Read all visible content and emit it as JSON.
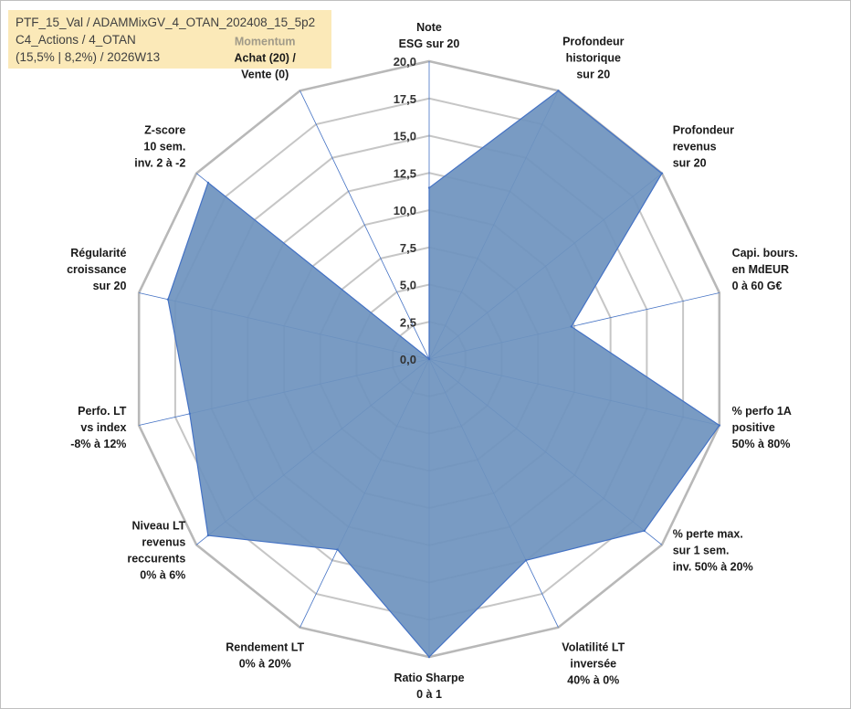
{
  "info": {
    "line1": "PTF_15_Val / ADAMMixGV_4_OTAN_202408_15_5p2",
    "line2": "C4_Actions / 4_OTAN",
    "line3": "(15,5% | 8,2%) / 2026W13"
  },
  "colors": {
    "fill": "#6f93be",
    "stroke": "#4472c4",
    "grid": "#c6c6c6",
    "spoke": "#4472c4",
    "background": "#fbe9b8"
  },
  "chart_data": {
    "type": "radar",
    "ylim": [
      0,
      20
    ],
    "ticks": [
      "0,0",
      "2,5",
      "5,0",
      "7,5",
      "10,0",
      "12,5",
      "15,0",
      "17,5",
      "20,0"
    ],
    "categories": [
      {
        "lines": [
          "Note",
          "ESG sur 20"
        ],
        "value": 11.5
      },
      {
        "lines": [
          "Profondeur",
          "historique",
          "sur 20"
        ],
        "value": 20
      },
      {
        "lines": [
          "Profondeur",
          "revenus",
          "sur 20"
        ],
        "value": 20
      },
      {
        "lines": [
          "Capi. bours.",
          "en MdEUR",
          "0 à 60 G€"
        ],
        "value": 9.8
      },
      {
        "lines": [
          "% perfo 1A",
          "positive",
          "50% à 80%"
        ],
        "value": 20
      },
      {
        "lines": [
          "% perte max.",
          "sur 1 sem.",
          "inv. 50% à 20%"
        ],
        "value": 18.5
      },
      {
        "lines": [
          "Volatilité LT",
          "inversée",
          "40% à 0%"
        ],
        "value": 15
      },
      {
        "lines": [
          "Ratio Sharpe",
          "0 à 1"
        ],
        "value": 20
      },
      {
        "lines": [
          "Rendement LT",
          "0% à 20%"
        ],
        "value": 14.2
      },
      {
        "lines": [
          "Niveau LT",
          "revenus",
          "reccurents",
          "0% à 6%"
        ],
        "value": 19
      },
      {
        "lines": [
          "Perfo. LT",
          "vs index",
          "-8% à 12%"
        ],
        "value": 16.5
      },
      {
        "lines": [
          "Régularité",
          "croissance",
          "sur 20"
        ],
        "value": 18
      },
      {
        "lines": [
          "Z-score",
          "10 sem.",
          "inv. 2 à -2"
        ],
        "value": 19
      },
      {
        "lines": [
          "Momentum",
          "Achat (20) /",
          "Vente (0)"
        ],
        "value": 0
      }
    ]
  }
}
